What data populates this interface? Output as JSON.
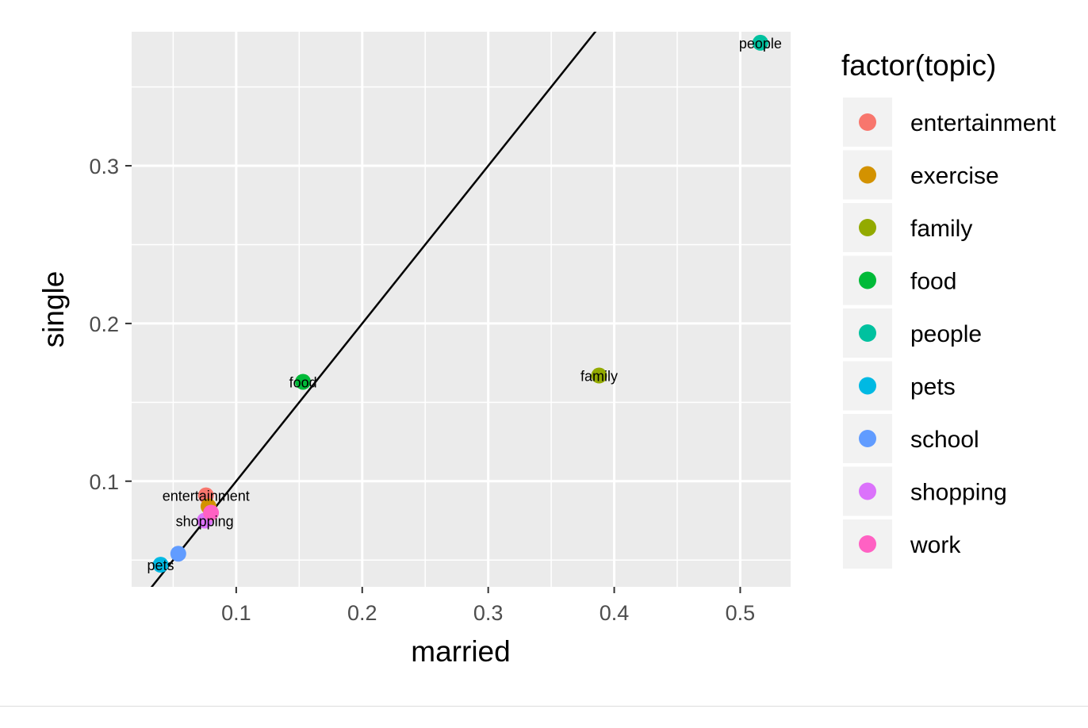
{
  "chart_data": {
    "type": "scatter",
    "title": "",
    "xlabel": "married",
    "ylabel": "single",
    "xlim": [
      0.017,
      0.54
    ],
    "ylim": [
      0.033,
      0.385
    ],
    "xticks": [
      0.1,
      0.2,
      0.3,
      0.4,
      0.5
    ],
    "yticks": [
      0.1,
      0.2,
      0.3
    ],
    "xtick_labels": [
      "0.1",
      "0.2",
      "0.3",
      "0.4",
      "0.5"
    ],
    "ytick_labels": [
      "0.1",
      "0.2",
      "0.3"
    ],
    "grid": true,
    "reference_line": {
      "intercept": 0,
      "slope": 1
    },
    "legend": {
      "title": "factor(topic)",
      "position": "right"
    },
    "series": [
      {
        "name": "entertainment",
        "color": "#F8766D",
        "x": 0.076,
        "y": 0.091,
        "label": "entertainment"
      },
      {
        "name": "exercise",
        "color": "#D39200",
        "x": 0.078,
        "y": 0.084,
        "label": ""
      },
      {
        "name": "family",
        "color": "#93AA00",
        "x": 0.388,
        "y": 0.167,
        "label": "family"
      },
      {
        "name": "food",
        "color": "#00BA38",
        "x": 0.153,
        "y": 0.163,
        "label": "food"
      },
      {
        "name": "people",
        "color": "#00C19F",
        "x": 0.516,
        "y": 0.378,
        "label": "people"
      },
      {
        "name": "pets",
        "color": "#00B9E3",
        "x": 0.04,
        "y": 0.047,
        "label": "pets"
      },
      {
        "name": "school",
        "color": "#619CFF",
        "x": 0.054,
        "y": 0.054,
        "label": ""
      },
      {
        "name": "shopping",
        "color": "#DB72FB",
        "x": 0.075,
        "y": 0.075,
        "label": "shopping"
      },
      {
        "name": "work",
        "color": "#FF61C3",
        "x": 0.08,
        "y": 0.08,
        "label": ""
      }
    ]
  }
}
